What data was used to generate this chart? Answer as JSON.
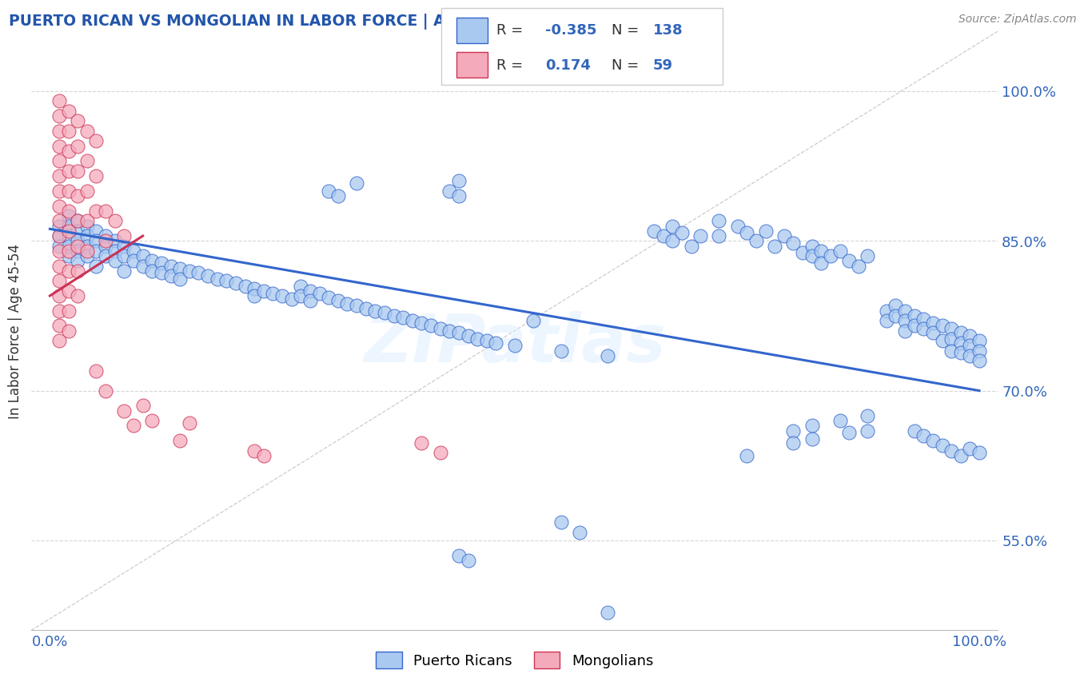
{
  "title": "PUERTO RICAN VS MONGOLIAN IN LABOR FORCE | AGE 45-54 CORRELATION CHART",
  "source": "Source: ZipAtlas.com",
  "ylabel": "In Labor Force | Age 45-54",
  "xlim": [
    -0.02,
    1.02
  ],
  "ylim": [
    0.46,
    1.06
  ],
  "yticks": [
    0.55,
    0.7,
    0.85,
    1.0
  ],
  "ytick_labels": [
    "55.0%",
    "70.0%",
    "85.0%",
    "100.0%"
  ],
  "xticks": [
    0.0,
    1.0
  ],
  "xtick_labels": [
    "0.0%",
    "100.0%"
  ],
  "legend_R_blue": "-0.385",
  "legend_N_blue": "138",
  "legend_R_pink": "0.174",
  "legend_N_pink": "59",
  "blue_color": "#aac9f0",
  "pink_color": "#f5aabb",
  "line_blue": "#3366cc",
  "line_pink": "#cc3355",
  "watermark_text": "ZIPatlas",
  "title_color": "#2255aa",
  "grid_color": "#cccccc",
  "blue_scatter": [
    [
      0.01,
      0.865
    ],
    [
      0.01,
      0.855
    ],
    [
      0.01,
      0.845
    ],
    [
      0.02,
      0.875
    ],
    [
      0.02,
      0.865
    ],
    [
      0.02,
      0.855
    ],
    [
      0.02,
      0.845
    ],
    [
      0.02,
      0.835
    ],
    [
      0.03,
      0.87
    ],
    [
      0.03,
      0.86
    ],
    [
      0.03,
      0.85
    ],
    [
      0.03,
      0.84
    ],
    [
      0.03,
      0.83
    ],
    [
      0.04,
      0.865
    ],
    [
      0.04,
      0.855
    ],
    [
      0.04,
      0.845
    ],
    [
      0.04,
      0.835
    ],
    [
      0.05,
      0.86
    ],
    [
      0.05,
      0.85
    ],
    [
      0.05,
      0.84
    ],
    [
      0.05,
      0.825
    ],
    [
      0.06,
      0.855
    ],
    [
      0.06,
      0.845
    ],
    [
      0.06,
      0.835
    ],
    [
      0.07,
      0.85
    ],
    [
      0.07,
      0.84
    ],
    [
      0.07,
      0.83
    ],
    [
      0.08,
      0.845
    ],
    [
      0.08,
      0.835
    ],
    [
      0.08,
      0.82
    ],
    [
      0.09,
      0.84
    ],
    [
      0.09,
      0.83
    ],
    [
      0.1,
      0.835
    ],
    [
      0.1,
      0.825
    ],
    [
      0.11,
      0.83
    ],
    [
      0.11,
      0.82
    ],
    [
      0.12,
      0.828
    ],
    [
      0.12,
      0.818
    ],
    [
      0.13,
      0.825
    ],
    [
      0.13,
      0.815
    ],
    [
      0.14,
      0.822
    ],
    [
      0.14,
      0.812
    ],
    [
      0.15,
      0.82
    ],
    [
      0.16,
      0.818
    ],
    [
      0.17,
      0.815
    ],
    [
      0.18,
      0.812
    ],
    [
      0.19,
      0.81
    ],
    [
      0.2,
      0.808
    ],
    [
      0.21,
      0.805
    ],
    [
      0.22,
      0.802
    ],
    [
      0.22,
      0.795
    ],
    [
      0.23,
      0.8
    ],
    [
      0.24,
      0.797
    ],
    [
      0.25,
      0.795
    ],
    [
      0.26,
      0.792
    ],
    [
      0.27,
      0.805
    ],
    [
      0.27,
      0.795
    ],
    [
      0.28,
      0.8
    ],
    [
      0.28,
      0.79
    ],
    [
      0.29,
      0.797
    ],
    [
      0.3,
      0.793
    ],
    [
      0.31,
      0.79
    ],
    [
      0.32,
      0.787
    ],
    [
      0.33,
      0.785
    ],
    [
      0.34,
      0.782
    ],
    [
      0.35,
      0.78
    ],
    [
      0.36,
      0.778
    ],
    [
      0.37,
      0.775
    ],
    [
      0.38,
      0.773
    ],
    [
      0.39,
      0.77
    ],
    [
      0.4,
      0.768
    ],
    [
      0.41,
      0.765
    ],
    [
      0.42,
      0.762
    ],
    [
      0.43,
      0.76
    ],
    [
      0.44,
      0.758
    ],
    [
      0.45,
      0.755
    ],
    [
      0.46,
      0.752
    ],
    [
      0.47,
      0.75
    ],
    [
      0.48,
      0.748
    ],
    [
      0.5,
      0.745
    ],
    [
      0.3,
      0.9
    ],
    [
      0.31,
      0.895
    ],
    [
      0.33,
      0.908
    ],
    [
      0.43,
      0.9
    ],
    [
      0.44,
      0.91
    ],
    [
      0.44,
      0.895
    ],
    [
      0.52,
      0.77
    ],
    [
      0.55,
      0.74
    ],
    [
      0.6,
      0.735
    ],
    [
      0.65,
      0.86
    ],
    [
      0.66,
      0.855
    ],
    [
      0.67,
      0.865
    ],
    [
      0.67,
      0.85
    ],
    [
      0.68,
      0.858
    ],
    [
      0.69,
      0.845
    ],
    [
      0.7,
      0.855
    ],
    [
      0.72,
      0.87
    ],
    [
      0.72,
      0.855
    ],
    [
      0.74,
      0.865
    ],
    [
      0.75,
      0.858
    ],
    [
      0.76,
      0.85
    ],
    [
      0.77,
      0.86
    ],
    [
      0.78,
      0.845
    ],
    [
      0.79,
      0.855
    ],
    [
      0.8,
      0.848
    ],
    [
      0.81,
      0.838
    ],
    [
      0.82,
      0.845
    ],
    [
      0.82,
      0.835
    ],
    [
      0.83,
      0.84
    ],
    [
      0.83,
      0.828
    ],
    [
      0.84,
      0.835
    ],
    [
      0.85,
      0.84
    ],
    [
      0.86,
      0.83
    ],
    [
      0.87,
      0.825
    ],
    [
      0.88,
      0.835
    ],
    [
      0.9,
      0.78
    ],
    [
      0.9,
      0.77
    ],
    [
      0.91,
      0.785
    ],
    [
      0.91,
      0.775
    ],
    [
      0.92,
      0.78
    ],
    [
      0.92,
      0.77
    ],
    [
      0.92,
      0.76
    ],
    [
      0.93,
      0.775
    ],
    [
      0.93,
      0.765
    ],
    [
      0.94,
      0.772
    ],
    [
      0.94,
      0.762
    ],
    [
      0.95,
      0.768
    ],
    [
      0.95,
      0.758
    ],
    [
      0.96,
      0.765
    ],
    [
      0.96,
      0.75
    ],
    [
      0.97,
      0.762
    ],
    [
      0.97,
      0.752
    ],
    [
      0.97,
      0.74
    ],
    [
      0.98,
      0.758
    ],
    [
      0.98,
      0.748
    ],
    [
      0.98,
      0.738
    ],
    [
      0.99,
      0.755
    ],
    [
      0.99,
      0.745
    ],
    [
      0.99,
      0.735
    ],
    [
      1.0,
      0.75
    ],
    [
      1.0,
      0.74
    ],
    [
      1.0,
      0.73
    ],
    [
      0.93,
      0.66
    ],
    [
      0.94,
      0.655
    ],
    [
      0.95,
      0.65
    ],
    [
      0.96,
      0.645
    ],
    [
      0.97,
      0.64
    ],
    [
      0.98,
      0.635
    ],
    [
      0.99,
      0.642
    ],
    [
      1.0,
      0.638
    ],
    [
      0.75,
      0.635
    ],
    [
      0.8,
      0.66
    ],
    [
      0.8,
      0.648
    ],
    [
      0.82,
      0.665
    ],
    [
      0.82,
      0.652
    ],
    [
      0.85,
      0.67
    ],
    [
      0.86,
      0.658
    ],
    [
      0.88,
      0.675
    ],
    [
      0.88,
      0.66
    ],
    [
      0.55,
      0.568
    ],
    [
      0.57,
      0.558
    ],
    [
      0.44,
      0.535
    ],
    [
      0.45,
      0.53
    ],
    [
      0.6,
      0.478
    ]
  ],
  "pink_scatter": [
    [
      0.01,
      0.99
    ],
    [
      0.01,
      0.975
    ],
    [
      0.01,
      0.96
    ],
    [
      0.01,
      0.945
    ],
    [
      0.01,
      0.93
    ],
    [
      0.01,
      0.915
    ],
    [
      0.01,
      0.9
    ],
    [
      0.01,
      0.885
    ],
    [
      0.01,
      0.87
    ],
    [
      0.01,
      0.855
    ],
    [
      0.01,
      0.84
    ],
    [
      0.01,
      0.825
    ],
    [
      0.01,
      0.81
    ],
    [
      0.01,
      0.795
    ],
    [
      0.01,
      0.78
    ],
    [
      0.01,
      0.765
    ],
    [
      0.01,
      0.75
    ],
    [
      0.02,
      0.98
    ],
    [
      0.02,
      0.96
    ],
    [
      0.02,
      0.94
    ],
    [
      0.02,
      0.92
    ],
    [
      0.02,
      0.9
    ],
    [
      0.02,
      0.88
    ],
    [
      0.02,
      0.86
    ],
    [
      0.02,
      0.84
    ],
    [
      0.02,
      0.82
    ],
    [
      0.02,
      0.8
    ],
    [
      0.02,
      0.78
    ],
    [
      0.02,
      0.76
    ],
    [
      0.03,
      0.97
    ],
    [
      0.03,
      0.945
    ],
    [
      0.03,
      0.92
    ],
    [
      0.03,
      0.895
    ],
    [
      0.03,
      0.87
    ],
    [
      0.03,
      0.845
    ],
    [
      0.03,
      0.82
    ],
    [
      0.03,
      0.795
    ],
    [
      0.04,
      0.96
    ],
    [
      0.04,
      0.93
    ],
    [
      0.04,
      0.9
    ],
    [
      0.04,
      0.87
    ],
    [
      0.04,
      0.84
    ],
    [
      0.05,
      0.95
    ],
    [
      0.05,
      0.915
    ],
    [
      0.05,
      0.88
    ],
    [
      0.06,
      0.88
    ],
    [
      0.06,
      0.85
    ],
    [
      0.07,
      0.87
    ],
    [
      0.08,
      0.855
    ],
    [
      0.05,
      0.72
    ],
    [
      0.06,
      0.7
    ],
    [
      0.08,
      0.68
    ],
    [
      0.09,
      0.665
    ],
    [
      0.1,
      0.685
    ],
    [
      0.11,
      0.67
    ],
    [
      0.14,
      0.65
    ],
    [
      0.15,
      0.668
    ],
    [
      0.22,
      0.64
    ],
    [
      0.23,
      0.635
    ],
    [
      0.4,
      0.648
    ],
    [
      0.42,
      0.638
    ]
  ],
  "blue_trendline_x": [
    0.0,
    1.0
  ],
  "blue_trendline_y": [
    0.862,
    0.7
  ],
  "pink_trendline_x": [
    0.0,
    0.1
  ],
  "pink_trendline_y": [
    0.795,
    0.855
  ]
}
